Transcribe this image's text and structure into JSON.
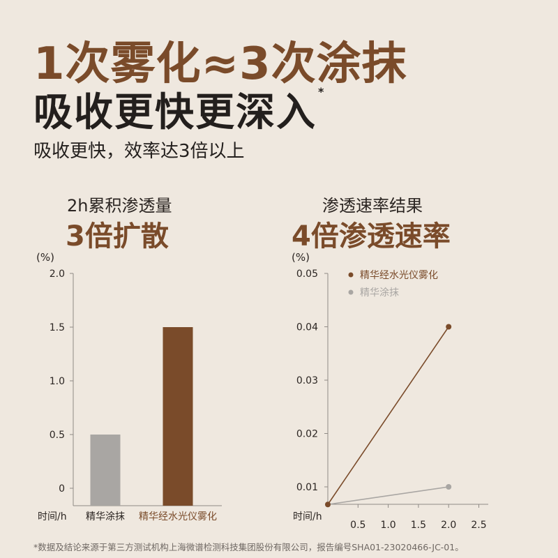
{
  "header": {
    "title": "1次雾化≈3次涂抹",
    "subtitle": "吸收更快更深入",
    "subtitle_mark": "*",
    "tagline": "吸收更快，效率达3倍以上"
  },
  "left_panel": {
    "caption": "2h累积渗透量",
    "headline": "3倍扩散"
  },
  "right_panel": {
    "caption": "渗透速率结果",
    "headline": "4倍渗透速率"
  },
  "footnote": "*数据及结论来源于第三方测试机构上海微谱检测科技集团股份有限公司，报告编号SHA01-23020466-JC-01。",
  "colors": {
    "brown": "#7a4b2a",
    "grey": "#a9a6a3",
    "axis": "#8f8a86",
    "text": "#2b2522"
  },
  "chart_data": [
    {
      "type": "bar",
      "title": "2h累积渗透量",
      "ylabel": "(%)",
      "xlabel": "时间/h",
      "categories": [
        "精华涂抹",
        "精华经水光仪雾化"
      ],
      "values": [
        0.5,
        1.5
      ],
      "category_colors": [
        "#a9a6a3",
        "#7a4b2a"
      ],
      "label_colors": [
        "#2b2522",
        "#7a4b2a"
      ],
      "ylim": [
        0,
        2.0
      ],
      "yticks": [
        "0",
        "0.5",
        "1.0",
        "1.5",
        "2.0"
      ],
      "grid": false
    },
    {
      "type": "line",
      "title": "渗透速率结果",
      "ylabel": "(%)",
      "xlabel": "时间/h",
      "xlim": [
        0,
        2.5
      ],
      "ylim": [
        0.005,
        0.05
      ],
      "xticks": [
        "0.5",
        "1.0",
        "1.5",
        "2.0",
        "2.5"
      ],
      "yticks": [
        "0.01",
        "0.02",
        "0.03",
        "0.04",
        "0.05"
      ],
      "legend_position": "top-left",
      "grid": false,
      "series": [
        {
          "name": "精华经水光仪雾化",
          "color": "#7a4b2a",
          "x": [
            0,
            2.0
          ],
          "y": [
            0.0067,
            0.04
          ]
        },
        {
          "name": "精华涂抹",
          "color": "#a9a6a3",
          "x": [
            0,
            2.0
          ],
          "y": [
            0.0067,
            0.01
          ]
        }
      ]
    }
  ]
}
